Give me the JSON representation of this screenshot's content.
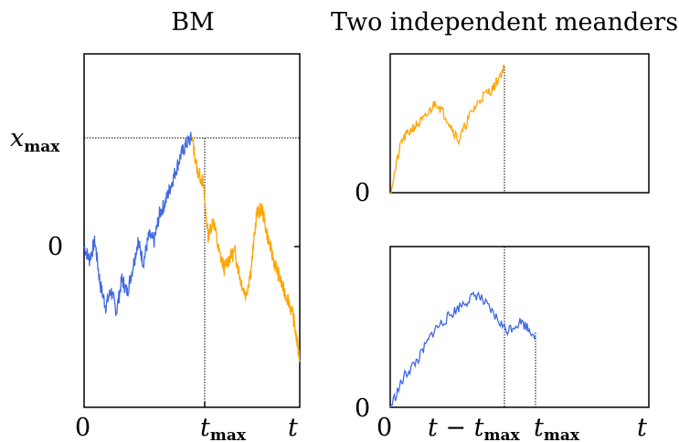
{
  "titles": {
    "left": "BM",
    "right": "Two independent meanders"
  },
  "labels": {
    "xmax_var": "x",
    "xmax_sub": "max",
    "zero": "0",
    "t": "t",
    "tmax_var": "t",
    "tmax_sub": "max",
    "t_minus": "t − t",
    "t_minus_sub": "max"
  },
  "colors": {
    "blue": "#4169e1",
    "orange": "#ffa500",
    "frame": "#000000"
  },
  "chart_data": [
    {
      "type": "line",
      "title": "BM",
      "xlabel": "t",
      "xticks": [
        "0",
        "t_max",
        "t"
      ],
      "yticks": [
        "x_max",
        "0"
      ],
      "series": [
        {
          "color": "#4169e1",
          "x": [
            0,
            0.05,
            0.1,
            0.15,
            0.2,
            0.25,
            0.3,
            0.35,
            0.4,
            0.45,
            0.5,
            0.55,
            0.6,
            0.65,
            0.7,
            0.75,
            0.8,
            0.85,
            0.9,
            0.95,
            1.0
          ],
          "y": [
            0.0,
            -0.12,
            0.05,
            -0.35,
            -0.55,
            -0.4,
            -0.6,
            -0.3,
            -0.42,
            -0.2,
            0.05,
            -0.15,
            0.1,
            0.05,
            0.3,
            0.4,
            0.55,
            0.7,
            0.85,
            0.95,
            1.0
          ]
        },
        {
          "color": "#ffa500",
          "x": [
            1.0,
            1.05,
            1.1,
            1.15,
            1.2,
            1.25,
            1.3,
            1.35,
            1.4,
            1.45,
            1.5,
            1.55,
            1.6,
            1.65,
            1.7,
            1.75,
            1.8,
            1.85,
            1.9,
            1.95,
            2.0
          ],
          "y": [
            1.0,
            0.7,
            0.6,
            0.1,
            0.25,
            -0.05,
            -0.2,
            -0.1,
            -0.05,
            -0.3,
            -0.45,
            -0.2,
            0.3,
            0.35,
            0.1,
            -0.1,
            -0.25,
            -0.4,
            -0.5,
            -0.7,
            -1.05
          ]
        }
      ]
    },
    {
      "type": "line",
      "title": "Two independent meanders",
      "yticks": [
        "0"
      ],
      "series": [
        {
          "color": "#ffa500",
          "x": [
            0,
            0.1,
            0.2,
            0.3,
            0.4,
            0.5,
            0.6,
            0.7,
            0.8,
            0.9,
            1.0
          ],
          "y": [
            0.0,
            0.6,
            0.75,
            0.85,
            1.05,
            0.85,
            0.6,
            0.9,
            1.1,
            1.2,
            1.45
          ]
        }
      ]
    },
    {
      "type": "line",
      "xlabel": "t",
      "xticks": [
        "0",
        "t − t_max",
        "t_max",
        "t"
      ],
      "yticks": [
        "0"
      ],
      "series": [
        {
          "color": "#4169e1",
          "x": [
            0,
            0.1,
            0.2,
            0.3,
            0.4,
            0.5,
            0.6,
            0.7,
            0.8,
            0.9,
            1.0
          ],
          "y": [
            0.0,
            0.35,
            0.55,
            0.85,
            1.0,
            1.15,
            1.25,
            1.05,
            0.85,
            0.95,
            0.8
          ]
        }
      ]
    }
  ]
}
